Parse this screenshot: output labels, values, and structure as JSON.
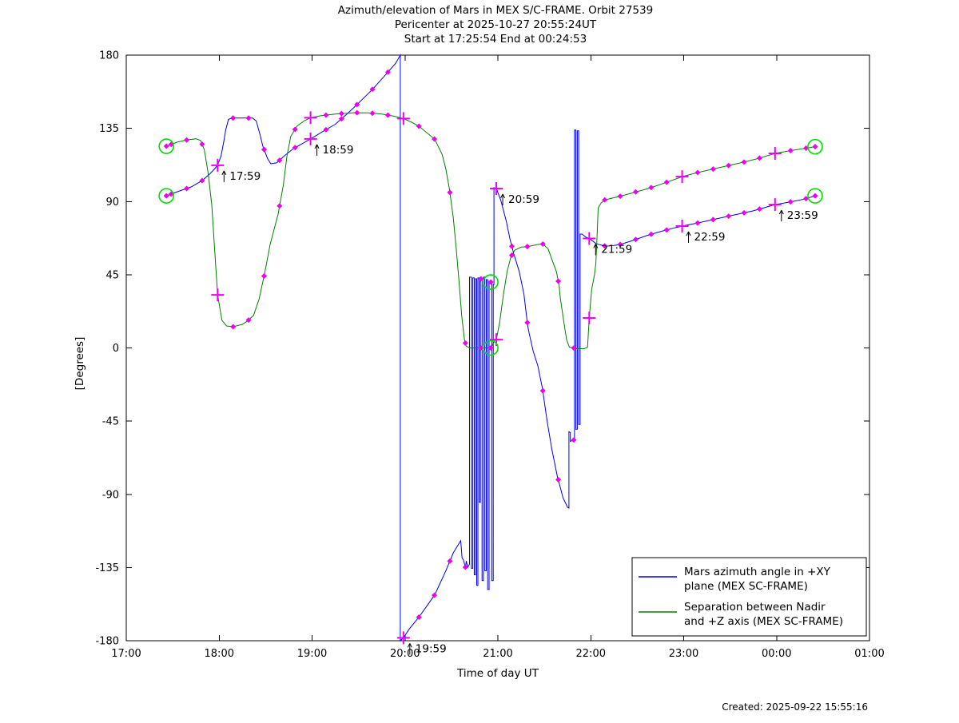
{
  "title": {
    "line1": "Azimuth/elevation of Mars in MEX S/C-FRAME.  Orbit 27539",
    "line2": "Pericenter at 2025-10-27 20:55:24UT",
    "line3": "Start at 17:25:54 End at 00:24:53"
  },
  "footer": {
    "created": "Created: 2025-09-22 15:55:16"
  },
  "chart_data": {
    "type": "line",
    "xlabel": "Time of day UT",
    "ylabel": "[Degrees]",
    "xlim": [
      17,
      25
    ],
    "ylim": [
      -180,
      180
    ],
    "grid": false,
    "legend_position": "lower right",
    "colors": {
      "azimuth": "#0000ee",
      "separation": "#008000",
      "marker": "#ee00ee",
      "event_circle": "#00dd00",
      "axis": "#000000",
      "background": "#ffffff"
    },
    "x_ticks": [
      {
        "t": 17,
        "label": "17:00"
      },
      {
        "t": 18,
        "label": "18:00"
      },
      {
        "t": 19,
        "label": "19:00"
      },
      {
        "t": 20,
        "label": "20:00"
      },
      {
        "t": 21,
        "label": "21:00"
      },
      {
        "t": 22,
        "label": "22:00"
      },
      {
        "t": 23,
        "label": "23:00"
      },
      {
        "t": 24,
        "label": "00:00"
      },
      {
        "t": 25,
        "label": "01:00"
      }
    ],
    "y_ticks": [
      {
        "v": 180,
        "label": "180"
      },
      {
        "v": 135,
        "label": "135"
      },
      {
        "v": 90,
        "label": "90"
      },
      {
        "v": 45,
        "label": "45"
      },
      {
        "v": 0,
        "label": "0"
      },
      {
        "v": -45,
        "label": "-45"
      },
      {
        "v": -90,
        "label": "-90"
      },
      {
        "v": -135,
        "label": "-135"
      },
      {
        "v": -180,
        "label": "-180"
      }
    ],
    "series": [
      {
        "name": "azimuth",
        "legend_lines": [
          "Mars azimuth angle in +XY",
          "plane (MEX SC-FRAME)"
        ],
        "color": "#0000ee",
        "points": [
          [
            17.4317,
            93.5
          ],
          [
            17.55,
            96
          ],
          [
            17.7,
            99
          ],
          [
            17.82,
            103
          ],
          [
            17.9,
            107
          ],
          [
            17.95,
            110
          ],
          [
            17.9833,
            112.3
          ],
          [
            18.02,
            118
          ],
          [
            18.05,
            127
          ],
          [
            18.07,
            134
          ],
          [
            18.1,
            140.5
          ],
          [
            18.14,
            141.3
          ],
          [
            18.36,
            141.3
          ],
          [
            18.4,
            139.5
          ],
          [
            18.44,
            131
          ],
          [
            18.47,
            124
          ],
          [
            18.52,
            116.5
          ],
          [
            18.555,
            113.2
          ],
          [
            18.62,
            113.8
          ],
          [
            18.7,
            118
          ],
          [
            18.8,
            122.6
          ],
          [
            18.9,
            125.8
          ],
          [
            18.9833,
            128.5
          ],
          [
            19.1,
            132.5
          ],
          [
            19.25,
            137.5
          ],
          [
            19.38,
            144
          ],
          [
            19.5,
            150.5
          ],
          [
            19.65,
            159
          ],
          [
            19.8,
            168.5
          ],
          [
            19.9,
            175
          ],
          [
            19.95,
            180
          ],
          [
            19.95,
            -180
          ],
          [
            19.9833,
            -178.2
          ],
          [
            20.05,
            -172.5
          ],
          [
            20.15,
            -165.5
          ],
          [
            20.32,
            -151.8
          ],
          [
            20.44,
            -137
          ],
          [
            20.52,
            -126
          ],
          [
            20.6,
            -118.5
          ],
          [
            20.615,
            -129
          ],
          [
            20.63,
            -130.5
          ],
          [
            20.65,
            -134.8
          ],
          [
            20.66,
            -131
          ],
          [
            20.675,
            -135
          ],
          [
            20.695,
            -133
          ],
          [
            20.695,
            43.5
          ],
          [
            20.715,
            43.5
          ],
          [
            20.715,
            -135.5
          ],
          [
            20.73,
            -135.5
          ],
          [
            20.73,
            43
          ],
          [
            20.745,
            43
          ],
          [
            20.745,
            -139.5
          ],
          [
            20.758,
            -139.5
          ],
          [
            20.758,
            42.5
          ],
          [
            20.772,
            42.5
          ],
          [
            20.772,
            -146
          ],
          [
            20.785,
            -146
          ],
          [
            20.785,
            43
          ],
          [
            20.8,
            43
          ],
          [
            20.8,
            -95
          ],
          [
            20.812,
            -95
          ],
          [
            20.812,
            42.5
          ],
          [
            20.83,
            42.5
          ],
          [
            20.83,
            -143
          ],
          [
            20.845,
            -143
          ],
          [
            20.845,
            43.5
          ],
          [
            20.86,
            43.5
          ],
          [
            20.86,
            -137
          ],
          [
            20.875,
            -137
          ],
          [
            20.875,
            42
          ],
          [
            20.89,
            42
          ],
          [
            20.89,
            -148.5
          ],
          [
            20.905,
            -148.5
          ],
          [
            20.905,
            41
          ],
          [
            20.935,
            40.5
          ],
          [
            20.935,
            -143
          ],
          [
            20.95,
            -143
          ],
          [
            20.95,
            39
          ],
          [
            20.958,
            39
          ],
          [
            20.958,
            98.5
          ],
          [
            20.9833,
            98
          ],
          [
            21.03,
            91
          ],
          [
            21.09,
            78
          ],
          [
            21.13,
            67
          ],
          [
            21.17,
            58
          ],
          [
            21.23,
            47
          ],
          [
            21.28,
            33
          ],
          [
            21.32,
            14
          ],
          [
            21.335,
            9.5
          ],
          [
            21.38,
            -2
          ],
          [
            21.43,
            -11
          ],
          [
            21.48,
            -25
          ],
          [
            21.53,
            -45
          ],
          [
            21.58,
            -62
          ],
          [
            21.64,
            -79
          ],
          [
            21.655,
            -82
          ],
          [
            21.7,
            -92
          ],
          [
            21.75,
            -98
          ],
          [
            21.765,
            -98.5
          ],
          [
            21.765,
            -51.5
          ],
          [
            21.78,
            -52
          ],
          [
            21.78,
            -57.5
          ],
          [
            21.815,
            -56.5
          ],
          [
            21.825,
            -57
          ],
          [
            21.825,
            134
          ],
          [
            21.84,
            134
          ],
          [
            21.84,
            -50
          ],
          [
            21.855,
            -50
          ],
          [
            21.855,
            133.5
          ],
          [
            21.87,
            133.5
          ],
          [
            21.87,
            -47
          ],
          [
            21.885,
            -47
          ],
          [
            21.885,
            70
          ],
          [
            21.905,
            70
          ],
          [
            21.95,
            68
          ],
          [
            21.9833,
            67.3
          ],
          [
            22.06,
            64
          ],
          [
            22.16,
            62.5
          ],
          [
            22.25,
            63
          ],
          [
            22.3167,
            63.6
          ],
          [
            22.45,
            66
          ],
          [
            22.6,
            69
          ],
          [
            22.75,
            71.5
          ],
          [
            22.9,
            73.8
          ],
          [
            22.9833,
            74.9
          ],
          [
            23.15,
            76.8
          ],
          [
            23.35,
            79.3
          ],
          [
            23.55,
            81.8
          ],
          [
            23.75,
            84.3
          ],
          [
            23.9833,
            88.1
          ],
          [
            24.15,
            89.8
          ],
          [
            24.3,
            91.5
          ],
          [
            24.4147,
            93.5
          ]
        ]
      },
      {
        "name": "separation",
        "legend_lines": [
          "Separation between Nadir",
          "and +Z axis (MEX SC-FRAME)"
        ],
        "color": "#008000",
        "points": [
          [
            17.4317,
            124
          ],
          [
            17.55,
            126.5
          ],
          [
            17.65,
            127.8
          ],
          [
            17.75,
            128.6
          ],
          [
            17.8,
            127.5
          ],
          [
            17.84,
            122
          ],
          [
            17.88,
            108
          ],
          [
            17.92,
            88
          ],
          [
            17.95,
            62
          ],
          [
            17.9833,
            32.6
          ],
          [
            18.03,
            17
          ],
          [
            18.08,
            13.5
          ],
          [
            18.15,
            13
          ],
          [
            18.25,
            14.5
          ],
          [
            18.31,
            16.8
          ],
          [
            18.37,
            20
          ],
          [
            18.43,
            30
          ],
          [
            18.49,
            46
          ],
          [
            18.55,
            64
          ],
          [
            18.634,
            82.2
          ],
          [
            18.69,
            100
          ],
          [
            18.73,
            118
          ],
          [
            18.77,
            130
          ],
          [
            18.84,
            136.5
          ],
          [
            18.92,
            139.8
          ],
          [
            18.9833,
            141.5
          ],
          [
            19.1,
            142.8
          ],
          [
            19.25,
            143.8
          ],
          [
            19.45,
            144.6
          ],
          [
            19.6,
            144.5
          ],
          [
            19.75,
            143.8
          ],
          [
            19.88,
            142.5
          ],
          [
            19.9833,
            141.0
          ],
          [
            20.08,
            138.5
          ],
          [
            20.15,
            136.3
          ],
          [
            20.32,
            128.3
          ],
          [
            20.4,
            119
          ],
          [
            20.44,
            110
          ],
          [
            20.48,
            97
          ],
          [
            20.52,
            80
          ],
          [
            20.55,
            62
          ],
          [
            20.58,
            42
          ],
          [
            20.61,
            20
          ],
          [
            20.64,
            5
          ],
          [
            20.66,
            1
          ],
          [
            20.7,
            0
          ],
          [
            20.9,
            0
          ],
          [
            20.94,
            1.5
          ],
          [
            20.965,
            4.5
          ],
          [
            20.9833,
            5.1
          ],
          [
            21.02,
            16
          ],
          [
            21.06,
            33
          ],
          [
            21.1,
            47
          ],
          [
            21.14,
            56
          ],
          [
            21.18,
            60
          ],
          [
            21.25,
            62
          ],
          [
            21.3167,
            62.3
          ],
          [
            21.42,
            63.5
          ],
          [
            21.48,
            64
          ],
          [
            21.54,
            61
          ],
          [
            21.59,
            53
          ],
          [
            21.63,
            47
          ],
          [
            21.66,
            38
          ],
          [
            21.672,
            30.7
          ],
          [
            21.71,
            16
          ],
          [
            21.74,
            5
          ],
          [
            21.77,
            0.5
          ],
          [
            21.85,
            -0.5
          ],
          [
            21.93,
            -0.5
          ],
          [
            21.965,
            0.5
          ],
          [
            21.9833,
            18.4
          ],
          [
            22.01,
            36
          ],
          [
            22.04,
            45
          ],
          [
            22.055,
            52
          ],
          [
            22.07,
            72
          ],
          [
            22.08,
            86
          ],
          [
            22.11,
            89
          ],
          [
            22.15,
            91
          ],
          [
            22.3,
            93
          ],
          [
            22.46,
            95.5
          ],
          [
            22.62,
            98
          ],
          [
            22.8,
            101.5
          ],
          [
            22.9833,
            105.3
          ],
          [
            23.15,
            107.8
          ],
          [
            23.32,
            110
          ],
          [
            23.49,
            112.2
          ],
          [
            23.66,
            114.4
          ],
          [
            23.83,
            116.9
          ],
          [
            23.9833,
            119.6
          ],
          [
            24.15,
            121.3
          ],
          [
            24.3,
            122.6
          ],
          [
            24.4147,
            123.7
          ]
        ]
      }
    ],
    "hour_markers": [
      {
        "label": "17:59",
        "t": 17.9833,
        "azimuth": 112.3,
        "separation": 32.6
      },
      {
        "label": "18:59",
        "t": 18.9833,
        "azimuth": 128.5,
        "separation": 141.5
      },
      {
        "label": "19:59",
        "t": 19.9833,
        "azimuth": -178.2,
        "separation": 141.0
      },
      {
        "label": "20:59",
        "t": 20.9833,
        "azimuth": 98.0,
        "separation": 5.1
      },
      {
        "label": "21:59",
        "t": 21.9833,
        "azimuth": 67.3,
        "separation": 18.4
      },
      {
        "label": "22:59",
        "t": 22.9833,
        "azimuth": 74.9,
        "separation": 105.3
      },
      {
        "label": "23:59",
        "t": 23.9833,
        "azimuth": 88.1,
        "separation": 119.6
      }
    ],
    "minor_marker_interval_hours": 0.166667,
    "minor_marker_start": 17.4833,
    "minor_marker_end": 24.39,
    "event_circles": [
      {
        "name": "orbit-start",
        "t": 17.4317,
        "values": [
          93.5,
          124
        ]
      },
      {
        "name": "pericenter",
        "t": 20.9233,
        "values": [
          40.5,
          0
        ]
      },
      {
        "name": "orbit-end",
        "t": 24.4147,
        "values": [
          93.5,
          123.7
        ]
      }
    ]
  }
}
